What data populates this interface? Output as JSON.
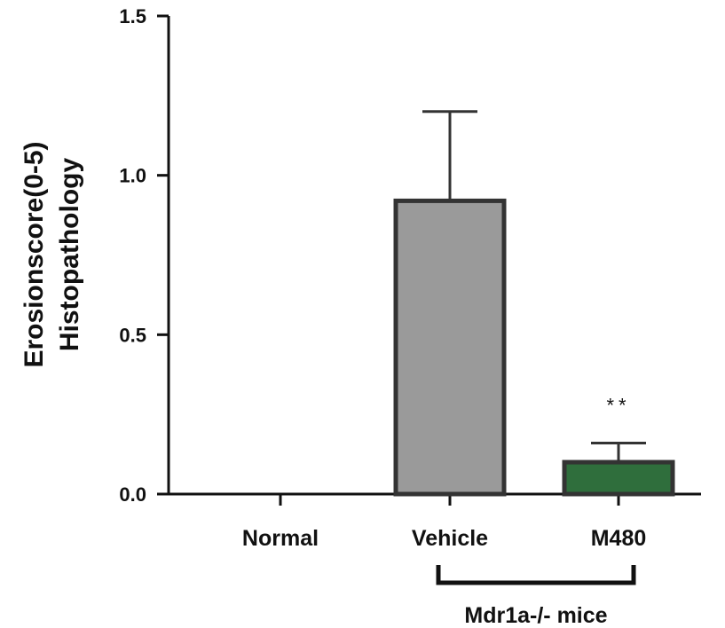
{
  "chart_data": {
    "type": "bar",
    "title": "",
    "xlabel": "",
    "ylabel_lines": [
      "Erosionscore(0-5)",
      "Histopathology"
    ],
    "ylim": [
      0,
      1.5
    ],
    "yticks": [
      0.0,
      0.5,
      1.0,
      1.5
    ],
    "ytick_labels": [
      "0.0",
      "0.5",
      "1.0",
      "1.5"
    ],
    "categories": [
      "Normal",
      "Vehicle",
      "M480"
    ],
    "values": [
      0,
      0.92,
      0.1
    ],
    "errors": [
      0,
      0.28,
      0.06
    ],
    "bar_colors": [
      "#9a9a9a",
      "#9a9a9a",
      "#2f6e3c"
    ],
    "annotations": [
      {
        "category": "M480",
        "text": "**"
      }
    ],
    "group_bracket": {
      "from": "Vehicle",
      "to": "M480",
      "label": "Mdr1a-/- mice"
    },
    "grid": false,
    "legend": "none"
  }
}
